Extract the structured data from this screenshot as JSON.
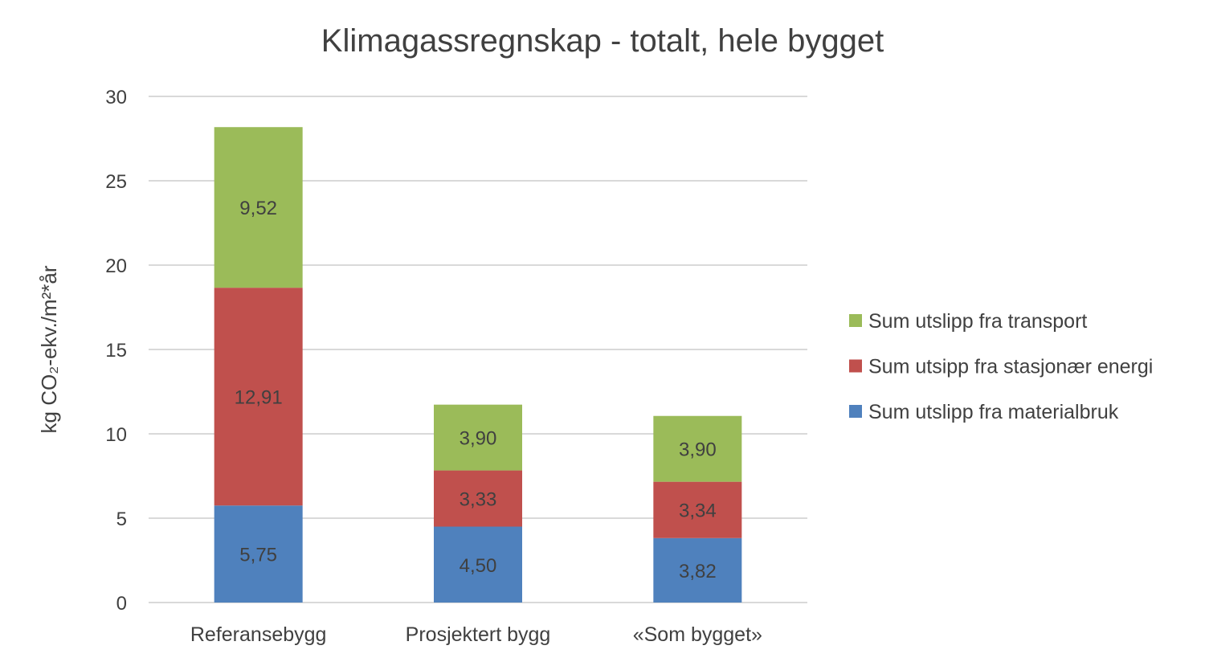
{
  "chart_data": {
    "type": "bar",
    "stacked": true,
    "title": "Klimagassregnskap - totalt, hele bygget",
    "xlabel": "",
    "ylabel": "kg CO₂-ekv./m²*år",
    "ylim": [
      0,
      30
    ],
    "yticks": [
      0,
      5,
      10,
      15,
      20,
      25,
      30
    ],
    "grid": true,
    "legend_position": "right",
    "categories": [
      "Referansebygg",
      "Prosjektert bygg",
      "«Som bygget»"
    ],
    "series": [
      {
        "name": "Sum utslipp fra materialbruk",
        "color": "#4F81BD",
        "values": [
          5.75,
          4.5,
          3.82
        ],
        "labels": [
          "5,75",
          "4,50",
          "3,82"
        ]
      },
      {
        "name": "Sum utsipp fra stasjonær energi",
        "color": "#C0504D",
        "values": [
          12.91,
          3.33,
          3.34
        ],
        "labels": [
          "12,91",
          "3,33",
          "3,34"
        ]
      },
      {
        "name": "Sum utslipp fra transport",
        "color": "#9BBB59",
        "values": [
          9.52,
          3.9,
          3.9
        ],
        "labels": [
          "9,52",
          "3,90",
          "3,90"
        ]
      }
    ]
  }
}
